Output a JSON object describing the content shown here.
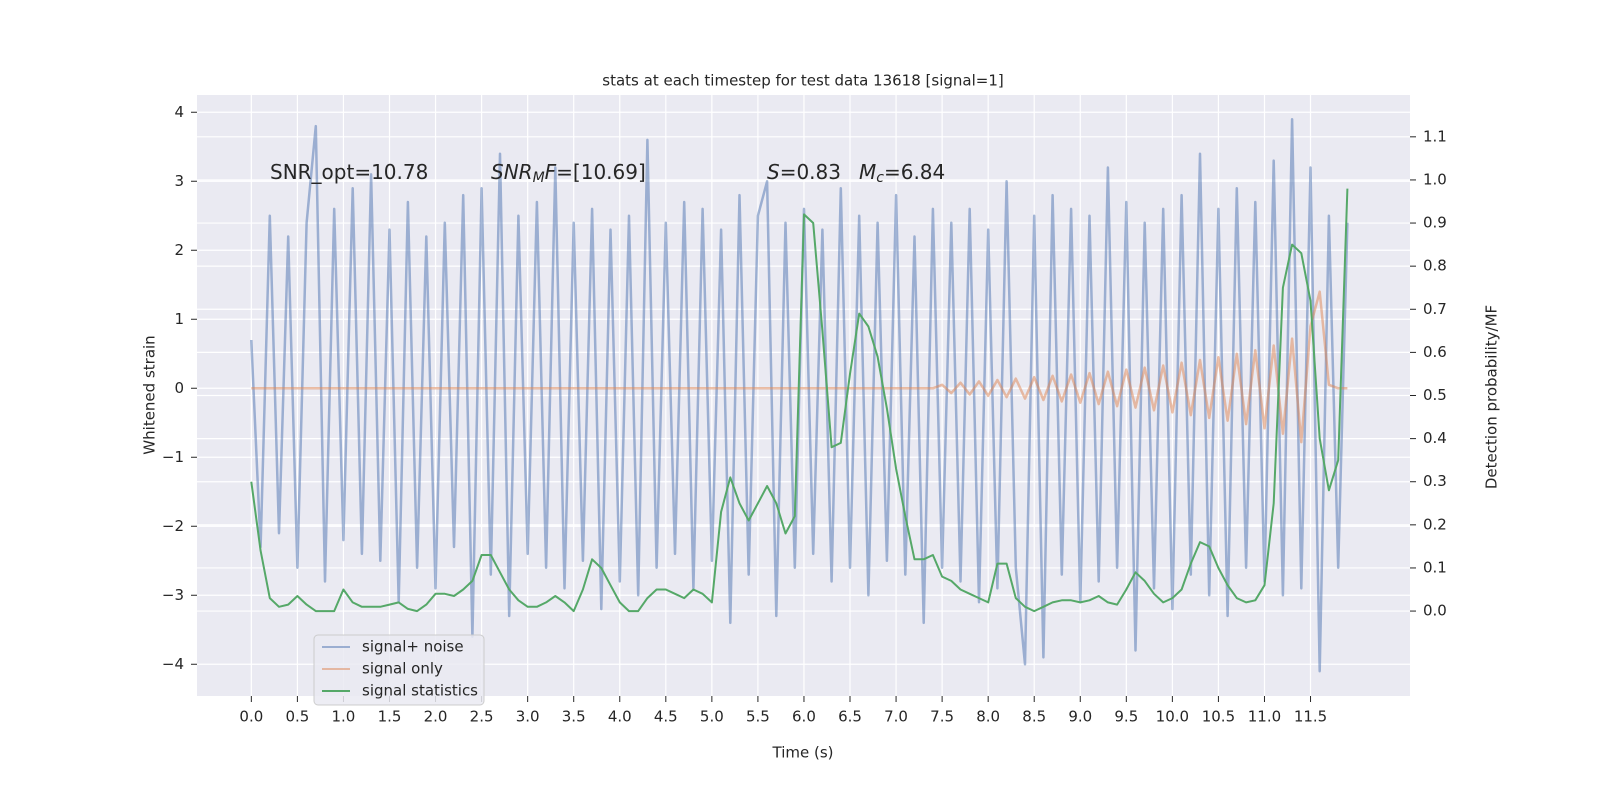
{
  "chart_data": {
    "type": "line",
    "title": "stats at each timestep for test data 13618 [signal=1]",
    "x_label": "Time (s)",
    "y_label": "Whitened strain",
    "y2_label": "Detection probability/MF",
    "xlim": [
      -0.59,
      12.58
    ],
    "ylim": [
      -4.46,
      4.25
    ],
    "y2lim": [
      -0.197,
      1.197
    ],
    "grid": true,
    "legend": "lower left",
    "xticks": [
      {
        "value": 0,
        "label": "0.0"
      },
      0.5,
      {
        "value": 1,
        "label": "1.0"
      },
      1.5,
      {
        "value": 2,
        "label": "2.0"
      },
      2.5,
      {
        "value": 3,
        "label": "3.0"
      },
      3.5,
      {
        "value": 4,
        "label": "4.0"
      },
      4.5,
      {
        "value": 5,
        "label": "5.0"
      },
      5.5,
      {
        "value": 6,
        "label": "6.0"
      },
      6.5,
      {
        "value": 7,
        "label": "7.0"
      },
      7.5,
      {
        "value": 8,
        "label": "8.0"
      },
      8.5,
      {
        "value": 9,
        "label": "9.0"
      },
      9.5,
      {
        "value": 10,
        "label": "10.0"
      },
      10.5,
      {
        "value": 11,
        "label": "11.0"
      },
      11.5
    ],
    "yticks": [
      {
        "value": -4,
        "label": "−4"
      },
      {
        "value": -3,
        "label": "−3"
      },
      {
        "value": -2,
        "label": "−2"
      },
      {
        "value": -1,
        "label": "−1"
      },
      0,
      1,
      2,
      3,
      4
    ],
    "y2ticks": [
      {
        "value": 0,
        "label": "0.0"
      },
      0.1,
      0.2,
      0.3,
      0.4,
      0.5,
      0.6,
      0.7,
      0.8,
      0.9,
      {
        "value": 1,
        "label": "1.0"
      },
      1.1
    ],
    "annotations": [
      [
        {
          "text": "SNR_opt=10.78"
        }
      ],
      [
        {
          "text": "SNR",
          "italic": true
        },
        {
          "text": "M",
          "italic": true,
          "sub": true
        },
        {
          "text": "F",
          "italic": true
        },
        {
          "text": "=[10.69]"
        }
      ],
      [
        {
          "text": "S",
          "italic": true
        },
        {
          "text": "=0.83"
        }
      ],
      [
        {
          "text": "M",
          "italic": true
        },
        {
          "text": "c",
          "italic": true,
          "sub": true
        },
        {
          "text": "=6.84"
        }
      ]
    ],
    "x": [
      0.0,
      0.1,
      0.2,
      0.3,
      0.4,
      0.5,
      0.6,
      0.7,
      0.8,
      0.9,
      1.0,
      1.1,
      1.2,
      1.3,
      1.4,
      1.5,
      1.6,
      1.7,
      1.8,
      1.9,
      2.0,
      2.1,
      2.2,
      2.3,
      2.4,
      2.5,
      2.6,
      2.7,
      2.8,
      2.9,
      3.0,
      3.1,
      3.2,
      3.3,
      3.4,
      3.5,
      3.6,
      3.7,
      3.8,
      3.9,
      4.0,
      4.1,
      4.2,
      4.3,
      4.4,
      4.5,
      4.6,
      4.7,
      4.8,
      4.9,
      5.0,
      5.1,
      5.2,
      5.3,
      5.4,
      5.5,
      5.6,
      5.7,
      5.8,
      5.9,
      6.0,
      6.1,
      6.2,
      6.3,
      6.4,
      6.5,
      6.6,
      6.7,
      6.8,
      6.9,
      7.0,
      7.1,
      7.2,
      7.3,
      7.4,
      7.5,
      7.6,
      7.7,
      7.8,
      7.9,
      8.0,
      8.1,
      8.2,
      8.3,
      8.4,
      8.5,
      8.6,
      8.7,
      8.8,
      8.9,
      9.0,
      9.1,
      9.2,
      9.3,
      9.4,
      9.5,
      9.6,
      9.7,
      9.8,
      9.9,
      10.0,
      10.1,
      10.2,
      10.3,
      10.4,
      10.5,
      10.6,
      10.7,
      10.8,
      10.9,
      11.0,
      11.1,
      11.2,
      11.3,
      11.4,
      11.5,
      11.6,
      11.7,
      11.8,
      11.9
    ],
    "series": [
      {
        "name": "signal+ noise",
        "color": "#4c72b0",
        "opacity": 0.5,
        "values": [
          0.7,
          -2.3,
          2.5,
          -2.1,
          2.2,
          -2.6,
          2.4,
          3.8,
          -2.8,
          2.6,
          -2.2,
          2.9,
          -2.4,
          3.1,
          -2.5,
          2.3,
          -3.1,
          2.7,
          -2.6,
          2.2,
          -2.9,
          2.4,
          -2.3,
          2.8,
          -3.6,
          2.9,
          -2.7,
          3.4,
          -3.3,
          2.5,
          -2.4,
          2.7,
          -2.6,
          3.2,
          -2.9,
          2.4,
          -2.5,
          2.6,
          -3.2,
          2.3,
          -2.8,
          2.5,
          -3.0,
          3.6,
          -2.6,
          2.4,
          -2.4,
          2.7,
          -2.9,
          2.6,
          -2.5,
          2.3,
          -3.4,
          2.8,
          -2.7,
          2.5,
          3.0,
          -3.3,
          2.4,
          -2.6,
          2.6,
          -2.4,
          2.3,
          -2.8,
          2.9,
          -2.6,
          2.5,
          -3.0,
          2.4,
          -2.5,
          2.8,
          -2.7,
          2.2,
          -3.4,
          2.6,
          -2.6,
          2.4,
          -2.8,
          2.6,
          -3.1,
          2.3,
          -2.9,
          3.0,
          -2.6,
          -4.0,
          2.5,
          -3.9,
          2.8,
          -2.7,
          2.6,
          -3.1,
          2.5,
          -2.8,
          3.2,
          -2.6,
          2.7,
          -3.8,
          2.4,
          -2.9,
          2.6,
          -3.2,
          2.8,
          -2.7,
          3.4,
          -3.0,
          2.6,
          -3.3,
          2.9,
          -2.6,
          2.7,
          -2.8,
          3.3,
          -3.0,
          3.9,
          -2.9,
          3.2,
          -4.1,
          2.5,
          -2.6,
          2.4
        ]
      },
      {
        "name": "signal only",
        "color": "#dd8452",
        "opacity": 0.5,
        "values": [
          0,
          0,
          0,
          0,
          0,
          0,
          0,
          0,
          0,
          0,
          0,
          0,
          0,
          0,
          0,
          0,
          0,
          0,
          0,
          0,
          0,
          0,
          0,
          0,
          0,
          0,
          0,
          0,
          0,
          0,
          0,
          0,
          0,
          0,
          0,
          0,
          0,
          0,
          0,
          0,
          0,
          0,
          0,
          0,
          0,
          0,
          0,
          0,
          0,
          0,
          0,
          0,
          0,
          0,
          0,
          0,
          0,
          0,
          0,
          0,
          0,
          0,
          0,
          0,
          0,
          0,
          0,
          0,
          0,
          0,
          0,
          0,
          0,
          0,
          0,
          0.05,
          -0.07,
          0.08,
          -0.09,
          0.1,
          -0.11,
          0.12,
          -0.13,
          0.14,
          -0.15,
          0.16,
          -0.17,
          0.18,
          -0.19,
          0.2,
          -0.21,
          0.22,
          -0.23,
          0.24,
          -0.26,
          0.27,
          -0.28,
          0.3,
          -0.32,
          0.33,
          -0.35,
          0.37,
          -0.39,
          0.41,
          -0.43,
          0.45,
          -0.47,
          0.5,
          -0.52,
          0.55,
          -0.58,
          0.62,
          -0.66,
          0.72,
          -0.78,
          0.9,
          1.4,
          0.05,
          0,
          0
        ]
      },
      {
        "name": "signal statistics",
        "color": "#55a868",
        "opacity": 1,
        "axis": "y2",
        "values": [
          0.3,
          0.14,
          0.03,
          0.01,
          0.015,
          0.035,
          0.015,
          0.0,
          0.0,
          0.0,
          0.05,
          0.02,
          0.01,
          0.01,
          0.01,
          0.015,
          0.02,
          0.005,
          0.0,
          0.015,
          0.04,
          0.04,
          0.035,
          0.05,
          0.07,
          0.13,
          0.13,
          0.09,
          0.05,
          0.025,
          0.01,
          0.01,
          0.02,
          0.035,
          0.02,
          0.0,
          0.05,
          0.12,
          0.1,
          0.06,
          0.02,
          0.0,
          0.0,
          0.03,
          0.05,
          0.05,
          0.04,
          0.03,
          0.05,
          0.04,
          0.02,
          0.23,
          0.31,
          0.25,
          0.21,
          0.25,
          0.29,
          0.25,
          0.18,
          0.22,
          0.92,
          0.9,
          0.65,
          0.38,
          0.39,
          0.55,
          0.69,
          0.66,
          0.59,
          0.47,
          0.33,
          0.22,
          0.12,
          0.12,
          0.13,
          0.08,
          0.07,
          0.05,
          0.04,
          0.03,
          0.02,
          0.11,
          0.11,
          0.03,
          0.01,
          0.0,
          0.01,
          0.02,
          0.025,
          0.025,
          0.02,
          0.025,
          0.035,
          0.02,
          0.015,
          0.05,
          0.09,
          0.07,
          0.04,
          0.02,
          0.03,
          0.05,
          0.11,
          0.16,
          0.15,
          0.1,
          0.06,
          0.03,
          0.02,
          0.025,
          0.06,
          0.25,
          0.75,
          0.85,
          0.83,
          0.72,
          0.4,
          0.28,
          0.35,
          0.98
        ]
      }
    ]
  }
}
